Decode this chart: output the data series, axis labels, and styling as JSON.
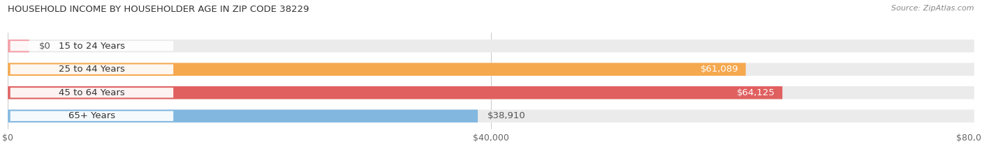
{
  "title": "HOUSEHOLD INCOME BY HOUSEHOLDER AGE IN ZIP CODE 38229",
  "source": "Source: ZipAtlas.com",
  "categories": [
    "15 to 24 Years",
    "25 to 44 Years",
    "45 to 64 Years",
    "65+ Years"
  ],
  "values": [
    0,
    61089,
    64125,
    38910
  ],
  "bar_colors": [
    "#f4a0a8",
    "#f5a84e",
    "#e06060",
    "#82b8e0"
  ],
  "background_color": "#ffffff",
  "bar_bg_color": "#ebebeb",
  "xlim": [
    0,
    80000
  ],
  "xticks": [
    0,
    40000,
    80000
  ],
  "xtick_labels": [
    "$0",
    "$40,000",
    "$80,000"
  ],
  "label_colors": [
    "#444444",
    "#ffffff",
    "#ffffff",
    "#555555"
  ],
  "value_labels": [
    "$0",
    "$61,089",
    "$64,125",
    "$38,910"
  ],
  "value_inside": [
    false,
    true,
    true,
    false
  ]
}
